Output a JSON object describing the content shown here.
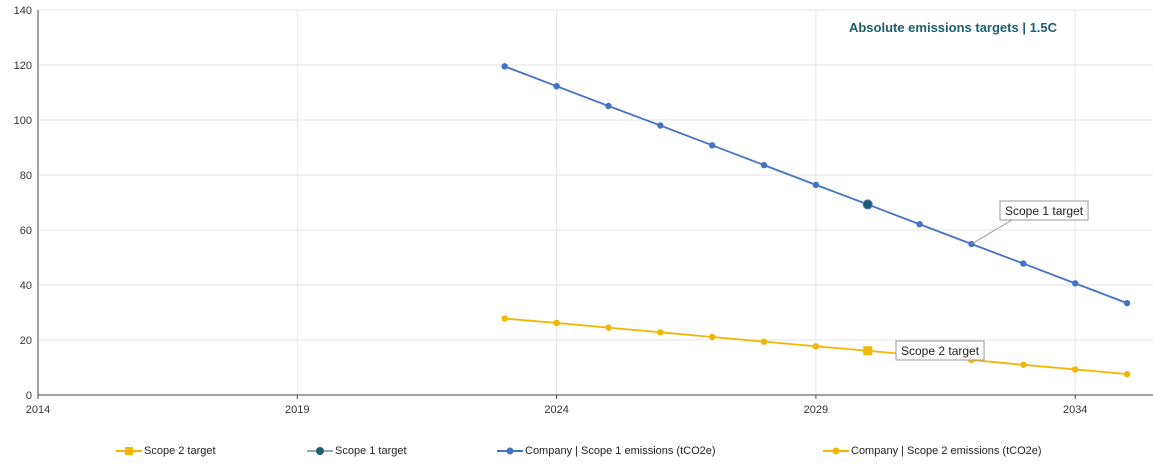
{
  "chart_data": {
    "type": "line",
    "title": "Absolute emissions targets | 1.5C",
    "xlabel": "",
    "ylabel": "",
    "xlim": [
      2014,
      2035.5
    ],
    "ylim": [
      0,
      140
    ],
    "x_ticks": [
      2014,
      2019,
      2024,
      2029,
      2034
    ],
    "y_ticks": [
      0,
      20,
      40,
      60,
      80,
      100,
      120,
      140
    ],
    "grid": true,
    "legend_position": "bottom",
    "series": [
      {
        "name": "Company | Scope 1 emissions (tCO2e)",
        "color": "#4472c4",
        "marker": "circle",
        "x": [
          2023,
          2024,
          2025,
          2026,
          2027,
          2028,
          2029,
          2030,
          2031,
          2032,
          2033,
          2034,
          2035
        ],
        "values": [
          119.5,
          112.3,
          105.1,
          98.0,
          90.8,
          83.6,
          76.4,
          69.3,
          62.1,
          54.9,
          47.8,
          40.6,
          33.4
        ]
      },
      {
        "name": "Company | Scope 2 emissions (tCO2e)",
        "color": "#f2b705",
        "marker": "circle",
        "x": [
          2023,
          2024,
          2025,
          2026,
          2027,
          2028,
          2029,
          2030,
          2031,
          2032,
          2033,
          2034,
          2035
        ],
        "values": [
          27.8,
          26.2,
          24.5,
          22.8,
          21.1,
          19.4,
          17.7,
          16.1,
          14.4,
          12.7,
          11.0,
          9.3,
          7.6
        ]
      },
      {
        "name": "Scope 1 target",
        "color": "#1b5e6e",
        "marker": "circle",
        "x": [
          2030
        ],
        "values": [
          69.3
        ]
      },
      {
        "name": "Scope 2 target",
        "color": "#f2b705",
        "marker": "square",
        "x": [
          2030
        ],
        "values": [
          16.1
        ]
      }
    ],
    "annotations": [
      {
        "text": "Scope 1 target",
        "x": 2032,
        "y": 54.9
      },
      {
        "text": "Scope 2 target",
        "x": 2030,
        "y": 16.1
      }
    ]
  },
  "legend": [
    {
      "label": "Scope 2 target",
      "color": "#f2b705",
      "marker": "square"
    },
    {
      "label": "Scope 1 target",
      "color": "#1b5e6e",
      "marker": "circle"
    },
    {
      "label": "Company | Scope 1 emissions (tCO2e)",
      "color": "#4472c4",
      "marker": "circle"
    },
    {
      "label": "Company | Scope 2 emissions (tCO2e)",
      "color": "#f2b705",
      "marker": "circle"
    }
  ]
}
